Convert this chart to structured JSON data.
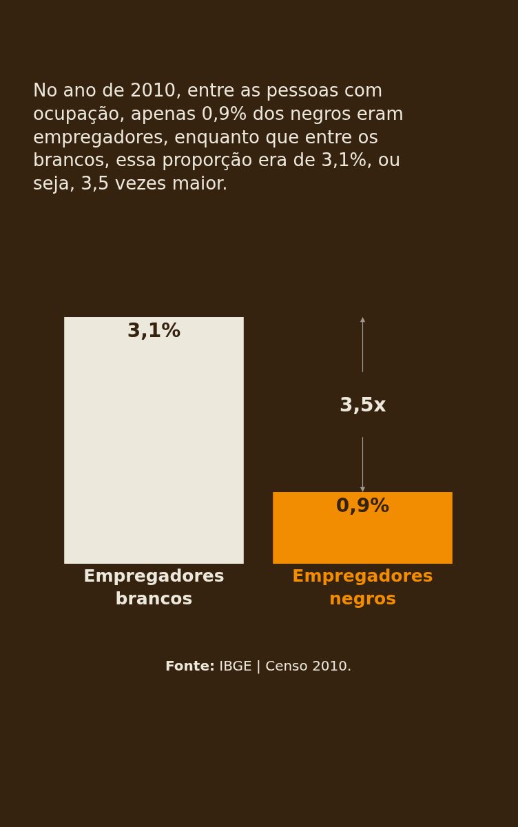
{
  "chart_data": {
    "type": "bar",
    "title": "No ano de 2010, entre as pessoas com ocupação, apenas 0,9% dos negros eram empregadores, enquanto que entre os brancos, essa proporção era de 3,1%, ou seja, 3,5 vezes maior.",
    "categories": [
      "Empregadores brancos",
      "Empregadores negros"
    ],
    "values": [
      3.1,
      0.9
    ],
    "colors": [
      "#ece8dc",
      "#f28c00"
    ],
    "value_labels": [
      "3,1%",
      "0,9%"
    ],
    "annotations": [
      "3,5x",
      "Fonte: IBGE | Censo 2010."
    ],
    "grid": false,
    "legend": false
  }
}
